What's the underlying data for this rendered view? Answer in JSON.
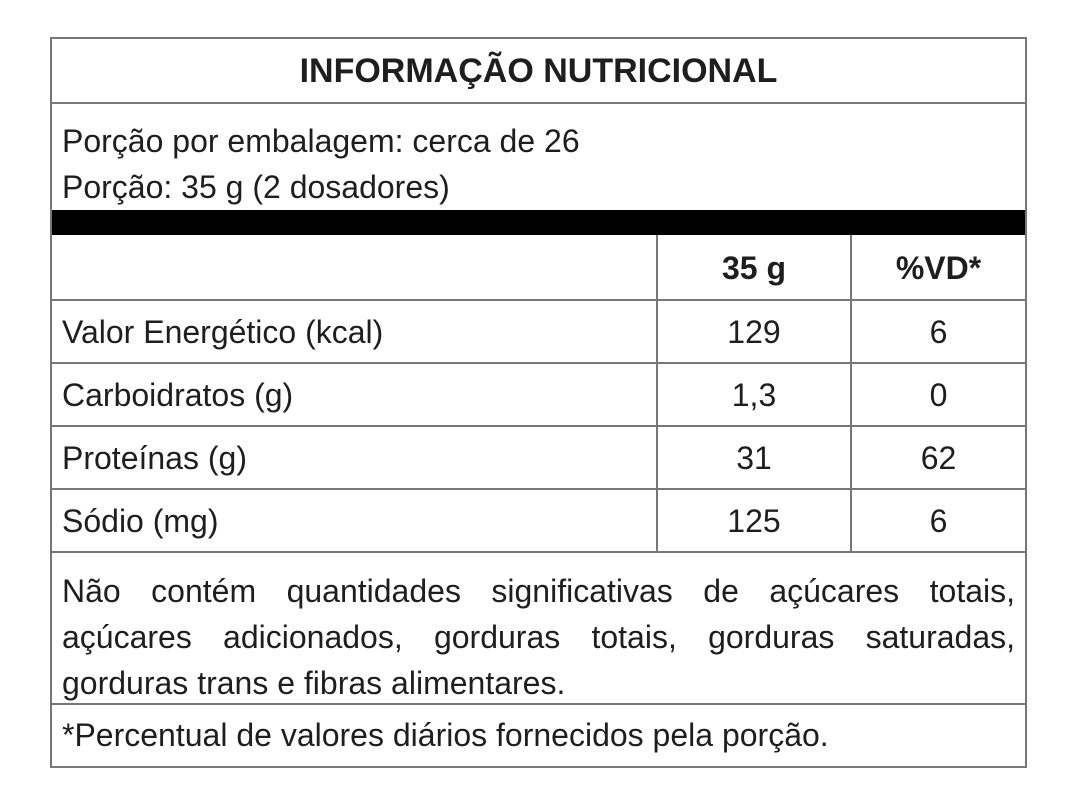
{
  "header": {
    "title": "INFORMAÇÃO NUTRICIONAL"
  },
  "portion": {
    "lines": [
      "Porção por embalagem: cerca de 26",
      "Porção: 35 g (2 dosadores)"
    ]
  },
  "table": {
    "header": [
      "35 g",
      "%VD*"
    ],
    "rows": [
      [
        "Valor Energético (kcal)",
        "129",
        "6"
      ],
      [
        "Carboidratos (g)",
        "1,3",
        "0"
      ],
      [
        "Proteínas (g)",
        "31",
        "62"
      ],
      [
        "Sódio (mg)",
        "125",
        "6"
      ]
    ]
  },
  "note": "Não contém quantidades significativas de açúcares totais, açúcares adicionados, gorduras totais, gorduras saturadas, gorduras trans e fibras alimentares.",
  "footnote": "*Percentual de valores diários fornecidos pela porção."
}
